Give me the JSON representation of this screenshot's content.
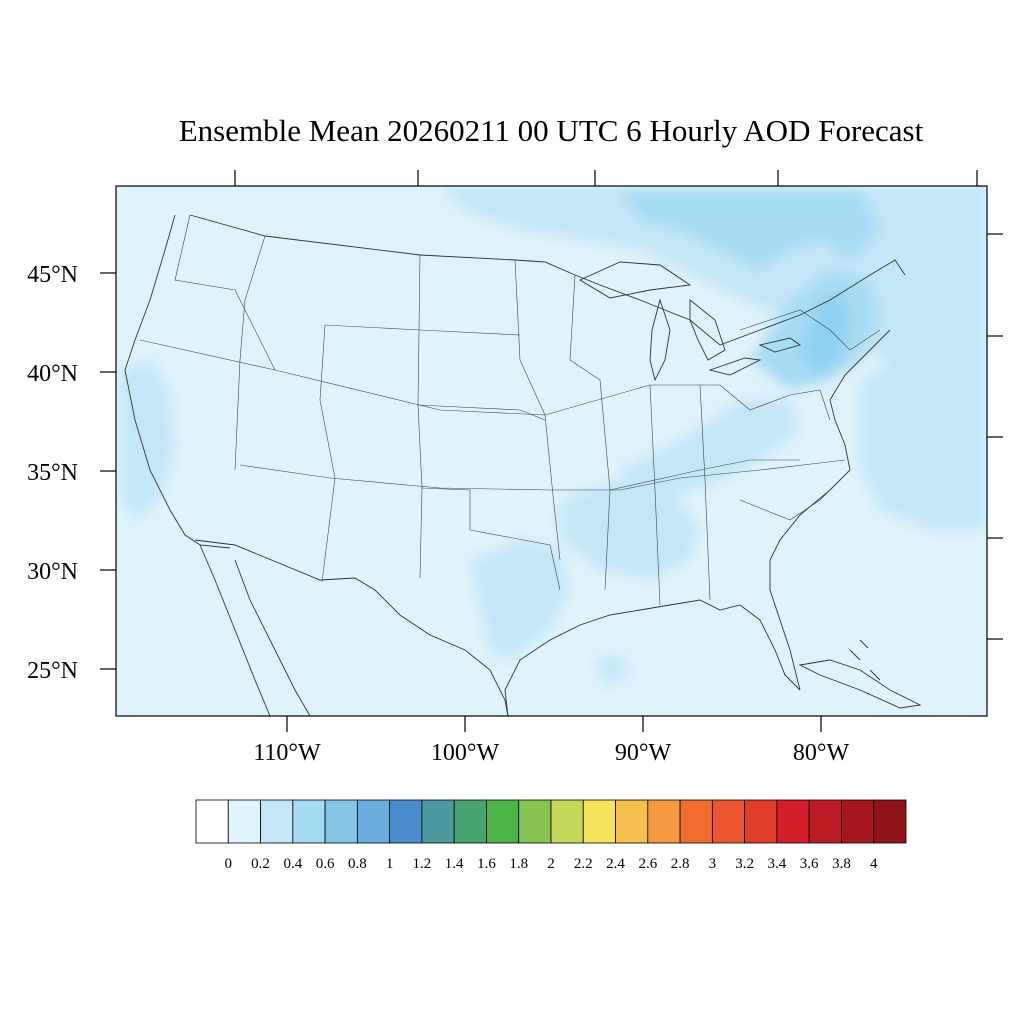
{
  "title": "Ensemble Mean 20260211 00 UTC 6 Hourly AOD Forecast",
  "map": {
    "background_color": "#def3fb",
    "plume_colors": {
      "light": "#c3e7f8",
      "medium": "#a7dcf5",
      "strong": "#8fd0f1"
    },
    "lat_labels": [
      "45°N",
      "40°N",
      "35°N",
      "30°N",
      "25°N"
    ],
    "lon_labels": [
      "110°W",
      "100°W",
      "90°W",
      "80°W"
    ]
  },
  "colorbar": {
    "labels": [
      "0",
      "0.2",
      "0.4",
      "0.6",
      "0.8",
      "1",
      "1.2",
      "1.4",
      "1.6",
      "1.8",
      "2",
      "2.2",
      "2.4",
      "2.6",
      "2.8",
      "3",
      "3.2",
      "3.4",
      "3.6",
      "3.8",
      "4"
    ],
    "colors": [
      "#ffffff",
      "#def3fb",
      "#c3e7f8",
      "#a3dbf4",
      "#86c4e6",
      "#6aaddc",
      "#4a8ccb",
      "#4b9aa0",
      "#48a46f",
      "#4db548",
      "#88c450",
      "#c5d85a",
      "#f8e45c",
      "#f6bf4e",
      "#f59941",
      "#f36c2f",
      "#ec5530",
      "#e23d2a",
      "#d41f2b",
      "#bd1b24",
      "#a6181d",
      "#8f141a"
    ]
  }
}
